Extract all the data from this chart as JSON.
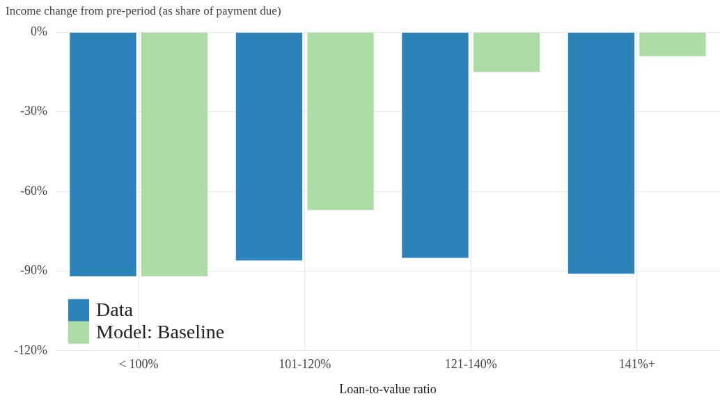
{
  "chart_data": {
    "type": "bar",
    "ylabel": "Income change from pre-period (as share of payment due)",
    "xlabel": "Loan-to-value ratio",
    "categories": [
      "< 100%",
      "101-120%",
      "121-140%",
      "141%+"
    ],
    "series": [
      {
        "name": "Data",
        "color": "#2b83ba",
        "values": [
          -92,
          -86,
          -85,
          -91
        ]
      },
      {
        "name": "Model: Baseline",
        "color": "#abdda4",
        "values": [
          -92,
          -67,
          -15,
          -9
        ]
      }
    ],
    "ylim": [
      -120,
      0
    ],
    "yticks": [
      {
        "value": 0,
        "label": "0%"
      },
      {
        "value": -30,
        "label": "-30%"
      },
      {
        "value": -60,
        "label": "-60%"
      },
      {
        "value": -90,
        "label": "-90%"
      },
      {
        "value": -120,
        "label": "-120%"
      }
    ],
    "grid": true,
    "legend": "bottom left"
  }
}
